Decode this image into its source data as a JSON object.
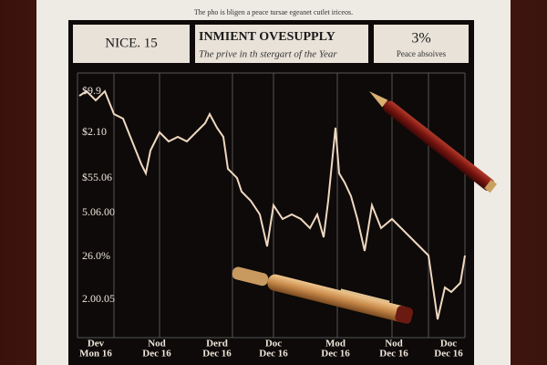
{
  "top_strip": "The pho is bligen a peace tursae egeanet cutlet iriceos.",
  "header": {
    "left": "NICE. 15",
    "title": "INMIENT OVESUPPLY",
    "subtitle": "The prive in th stergart of the Year",
    "right": "3%",
    "right_sub": "Peace absoives"
  },
  "y_labels": [
    "$9.9",
    "$2.10",
    "$55.06",
    "5.06.00",
    "26.0%",
    "2.00.05"
  ],
  "x_labels": [
    [
      "Dev",
      "Mon 16"
    ],
    [
      "Nod",
      "Dec 16"
    ],
    [
      "Derd",
      "Dec 16"
    ],
    [
      "Doc",
      "Dec 16"
    ],
    [
      "Mod",
      "Dec 16"
    ],
    [
      "Nod",
      "Dec 16"
    ],
    [
      "Doc",
      "Dec 16"
    ]
  ]
}
